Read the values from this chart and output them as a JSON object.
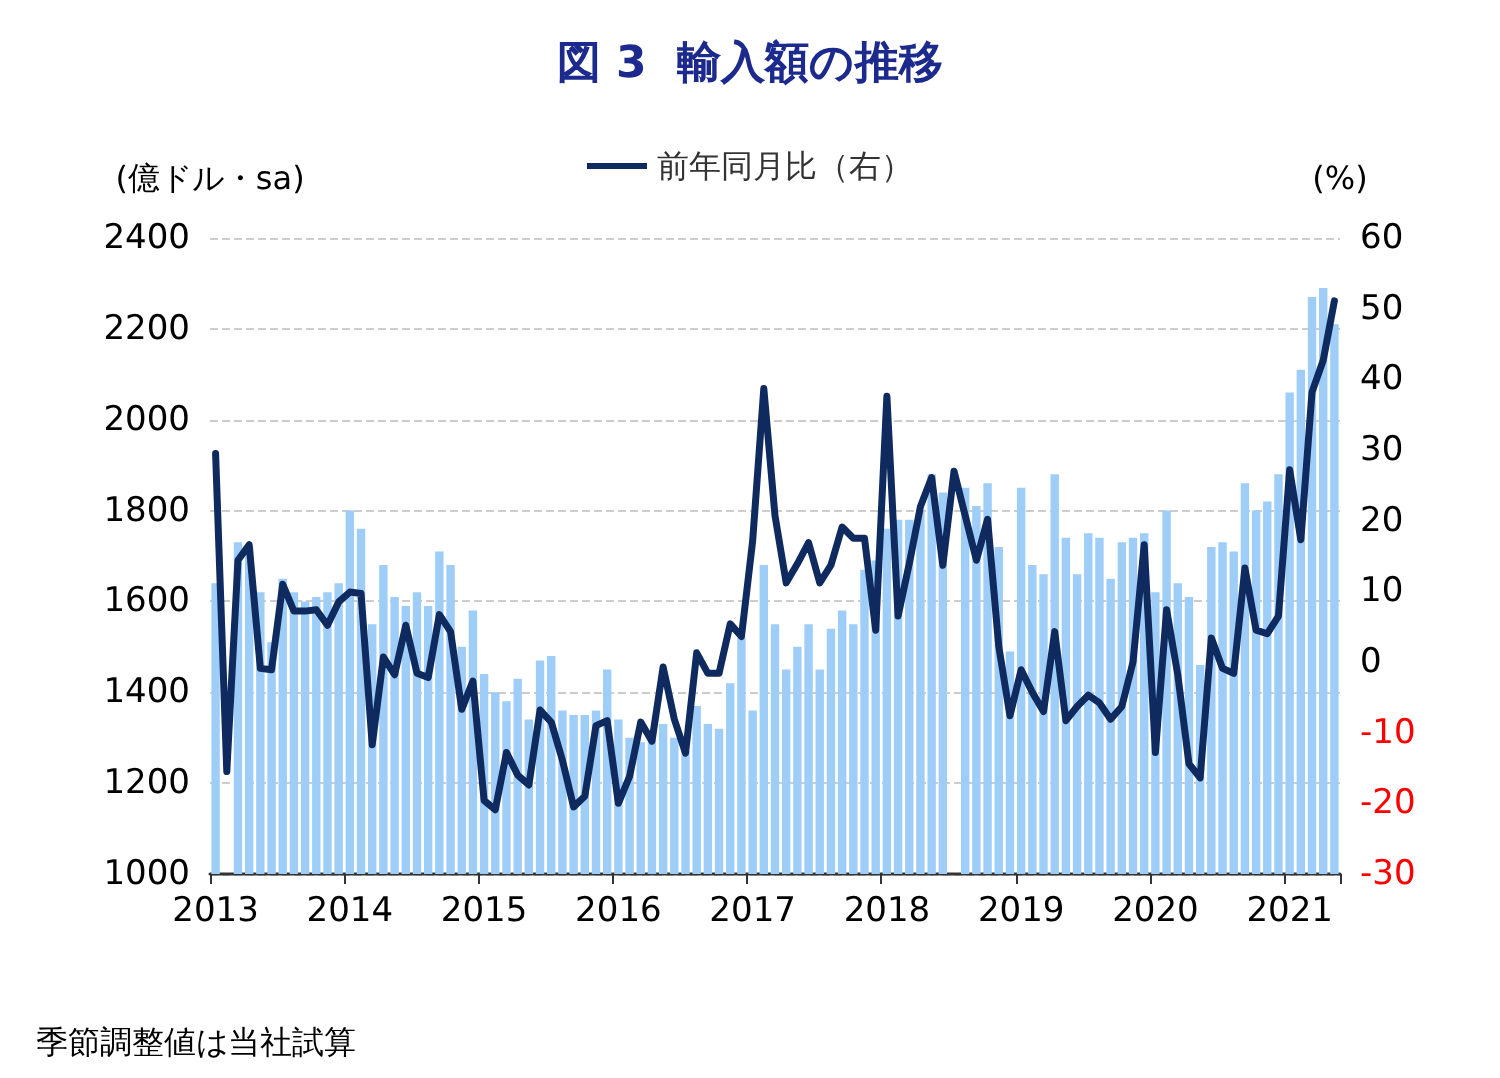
{
  "chart_data": {
    "type": "bar",
    "title": "図 3  輸入額の推移",
    "ylabel": "(億ドル・sa)",
    "y2label": "(%)",
    "annotations": [
      "季節調整値は当社試算"
    ],
    "categories": [
      "2013",
      null,
      null,
      null,
      null,
      null,
      null,
      null,
      null,
      null,
      null,
      null,
      "2014",
      null,
      null,
      null,
      null,
      null,
      null,
      null,
      null,
      null,
      null,
      null,
      "2015",
      null,
      null,
      null,
      null,
      null,
      null,
      null,
      null,
      null,
      null,
      null,
      "2016",
      null,
      null,
      null,
      null,
      null,
      null,
      null,
      null,
      null,
      null,
      null,
      "2017",
      null,
      null,
      null,
      null,
      null,
      null,
      null,
      null,
      null,
      null,
      null,
      "2018",
      null,
      null,
      null,
      null,
      null,
      null,
      null,
      null,
      null,
      null,
      null,
      "2019",
      null,
      null,
      null,
      null,
      null,
      null,
      null,
      null,
      null,
      null,
      null,
      "2020",
      null,
      null,
      null,
      null,
      null,
      null,
      null,
      null,
      null,
      null,
      null,
      "2021",
      null,
      null,
      null,
      null
    ],
    "series": [
      {
        "color": "#9ecdf8",
        "values": [
          1640,
          null,
          1730,
          1720,
          1620,
          1510,
          1650,
          1620,
          1600,
          1610,
          1620,
          1640,
          1800,
          1760,
          1550,
          1680,
          1610,
          1590,
          1620,
          1590,
          1710,
          1680,
          1500,
          1580,
          1440,
          1400,
          1380,
          1430,
          1340,
          1470,
          1480,
          1360,
          1350,
          1350,
          1360,
          1450,
          1340,
          1300,
          1290,
          1310,
          1330,
          1300,
          1270,
          1370,
          1330,
          1320,
          1420,
          1520,
          1360,
          1680,
          1550,
          1450,
          1500,
          1550,
          1450,
          1540,
          1580,
          1550,
          1670,
          1690,
          1760,
          1780,
          1780,
          1800,
          1880,
          1840,
          null,
          1850,
          1810,
          1860,
          1720,
          1490,
          1850,
          1680,
          1660,
          1880,
          1740,
          1660,
          1750,
          1740,
          1650,
          1730,
          1740,
          1750,
          1620,
          1800,
          1640,
          1610,
          1460,
          1720,
          1730,
          1710,
          1860,
          1800,
          1820,
          1880,
          2060,
          2110,
          2270,
          2290,
          2210
        ]
      },
      {
        "type": "line",
        "axis": "y2",
        "name": "前年同月比（右）",
        "color": "#0e2a5e",
        "values": [
          29.5,
          -15.5,
          14.4,
          16.6,
          -0.9,
          -1.1,
          11,
          7.2,
          7.2,
          7.4,
          5.2,
          8.5,
          9.9,
          9.7,
          -11.7,
          0.7,
          -1.8,
          5.2,
          -1.6,
          -2.2,
          6.7,
          4.3,
          -6.7,
          -2.7,
          -19.6,
          -20.9,
          -12.8,
          -16,
          -17.4,
          -6.8,
          -8.5,
          -13.9,
          -20.5,
          -19,
          -9,
          -8.3,
          -20,
          -16.2,
          -8.5,
          -11.2,
          -0.7,
          -8.1,
          -12.9,
          1.3,
          -1.6,
          -1.6,
          5.4,
          3.6,
          17.1,
          38.7,
          20.7,
          11.2,
          13.9,
          16.9,
          11.2,
          13.7,
          19.1,
          17.5,
          17.5,
          4.5,
          37.6,
          6.5,
          13.9,
          22,
          26.1,
          13.7,
          27,
          20.7,
          14.4,
          20.2,
          2.2,
          -7.6,
          -1.1,
          -4.3,
          -7,
          4.3,
          -8.3,
          -6.3,
          -4.7,
          -5.8,
          -8.1,
          -6.3,
          0,
          16.6,
          -12.8,
          7.4,
          -1.8,
          -14.4,
          -16.4,
          3.4,
          -0.9,
          -1.6,
          13.3,
          4.5,
          4,
          6.5,
          27.2,
          17.3,
          38.2,
          42.7,
          51.1
        ]
      }
    ],
    "ylim": [
      1000,
      2400
    ],
    "yticks": [
      1000,
      1200,
      1400,
      1600,
      1800,
      2000,
      2200,
      2400
    ],
    "y2lim": [
      -30,
      60
    ],
    "y2ticks": [
      -30,
      -20,
      -10,
      0,
      10,
      20,
      30,
      40,
      50,
      60
    ],
    "grid": "y",
    "legend": "top",
    "marker": "none",
    "line_style": "solid"
  }
}
